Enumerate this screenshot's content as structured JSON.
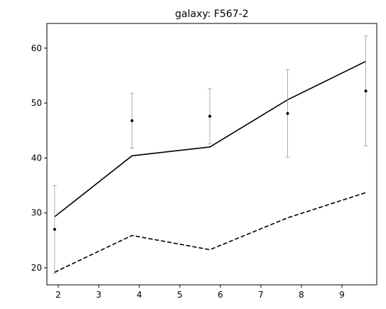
{
  "chart_data": {
    "type": "line",
    "title": "galaxy: F567-2",
    "xlabel": "",
    "ylabel": "",
    "xlim": [
      1.72,
      9.86
    ],
    "ylim": [
      16.9,
      64.5
    ],
    "x_ticks": [
      2,
      3,
      4,
      5,
      6,
      7,
      8,
      9
    ],
    "y_ticks": [
      20,
      30,
      40,
      50,
      60
    ],
    "grid": false,
    "legend": "none",
    "series": [
      {
        "style": "solid",
        "color": "#000000",
        "x": [
          1.91,
          3.82,
          5.74,
          7.66,
          9.59
        ],
        "y": [
          29.3,
          40.4,
          42.0,
          50.6,
          57.6
        ]
      },
      {
        "style": "dashed",
        "color": "#000000",
        "x": [
          1.91,
          3.82,
          5.74,
          7.66,
          9.59
        ],
        "y": [
          19.2,
          25.9,
          23.3,
          29.1,
          33.7
        ]
      }
    ],
    "observations": {
      "color": "#000000",
      "errorbar_color": "#999999",
      "x": [
        1.91,
        3.82,
        5.74,
        7.66,
        9.59
      ],
      "y": [
        27.0,
        46.8,
        47.6,
        48.1,
        52.2
      ],
      "yerr": [
        8.0,
        5.0,
        5.0,
        8.0,
        10.0
      ]
    }
  }
}
